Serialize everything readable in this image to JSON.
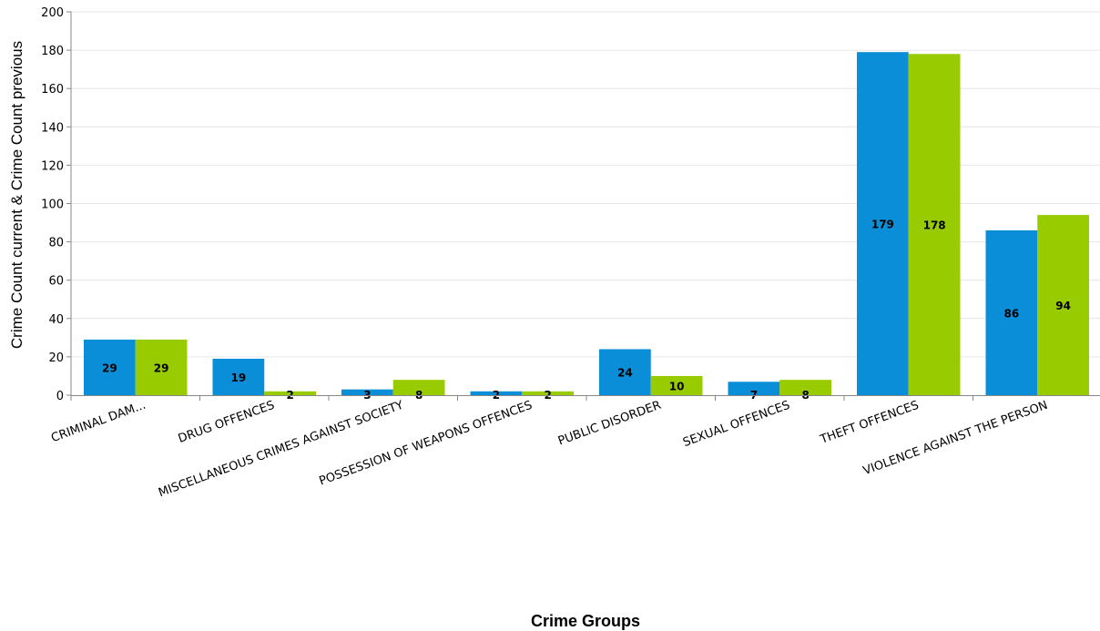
{
  "chart_data": {
    "type": "bar",
    "categories": [
      "CRIMINAL DAM...",
      "DRUG OFFENCES",
      "MISCELLANEOUS CRIMES AGAINST SOCIETY",
      "POSSESSION OF WEAPONS OFFENCES",
      "PUBLIC DISORDER",
      "SEXUAL OFFENCES",
      "THEFT OFFENCES",
      "VIOLENCE AGAINST THE PERSON"
    ],
    "series": [
      {
        "values": [
          29,
          19,
          3,
          2,
          24,
          7,
          179,
          86
        ],
        "color": "#0a8ed8"
      },
      {
        "values": [
          29,
          2,
          8,
          2,
          10,
          8,
          178,
          94
        ],
        "color": "#99cc00"
      }
    ],
    "title": "",
    "xlabel": "Crime Groups",
    "ylabel": "Crime Count current & Crime Count previous",
    "ylim": [
      0,
      200
    ],
    "yticks": [
      0,
      20,
      40,
      60,
      80,
      100,
      120,
      140,
      160,
      180,
      200
    ],
    "grid": true,
    "legend": "none"
  }
}
